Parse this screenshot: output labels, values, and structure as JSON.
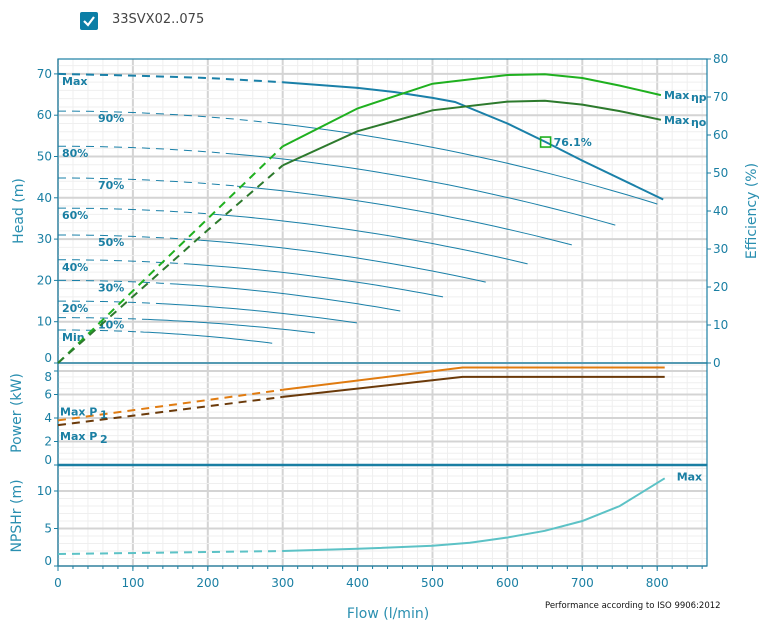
{
  "legend": {
    "checked": true,
    "label": "33SVX02..075",
    "color": "#0b7ea6"
  },
  "x_axis": {
    "label": "Flow (l/min)",
    "range": [
      0,
      867
    ],
    "ticks": [
      "0",
      "100",
      "200",
      "300",
      "400",
      "500",
      "600",
      "700",
      "800"
    ]
  },
  "note": "Performance according to ISO 9906:2012",
  "colors": {
    "axis": "#1a7fa3",
    "head": "#1a80a8",
    "eta_p": "#1fb01f",
    "eta_o": "#2d7a2d",
    "p1": "#e07b10",
    "p2": "#6b3a0a",
    "npsh": "#5cc2c6",
    "grid": "#d6d6d6"
  },
  "chart_data": [
    {
      "type": "line",
      "ylabel": "Head (m)",
      "ylim": [
        0,
        73.6
      ],
      "yticks": [
        "0",
        "10",
        "20",
        "30",
        "40",
        "50",
        "60",
        "70"
      ],
      "y2label": "Efficiency (%)",
      "y2lim": [
        0,
        80
      ],
      "y2ticks": [
        "0",
        "10",
        "20",
        "30",
        "40",
        "50",
        "60",
        "70",
        "80"
      ],
      "grid": true,
      "head_curves": [
        {
          "label": "Max",
          "points": [
            [
              0,
              70
            ],
            [
              100,
              69.6
            ],
            [
              200,
              69
            ],
            [
              300,
              68
            ],
            [
              400,
              66.6
            ],
            [
              450,
              65.6
            ],
            [
              500,
              64.2
            ],
            [
              530,
              63.2
            ],
            [
              600,
              58
            ],
            [
              651,
              53.5
            ],
            [
              700,
              49
            ],
            [
              808,
              39.6
            ]
          ],
          "solid_from": 300
        },
        {
          "label": "90%",
          "h0": 61,
          "end": [
            800,
            38.5
          ],
          "solid_from": 283
        },
        {
          "label": "80%",
          "h0": 52.5,
          "end": [
            744,
            33.4
          ],
          "solid_from": 234
        },
        {
          "label": "70%",
          "h0": 44.8,
          "end": [
            686,
            28.6
          ],
          "solid_from": 239
        },
        {
          "label": "60%",
          "h0": 37.5,
          "end": [
            627,
            24
          ],
          "solid_from": 216
        },
        {
          "label": "50%",
          "h0": 31,
          "end": [
            571,
            19.6
          ],
          "solid_from": 190
        },
        {
          "label": "40%",
          "h0": 25,
          "end": [
            514,
            16
          ],
          "solid_from": 170
        },
        {
          "label": "30%",
          "h0": 20,
          "end": [
            457,
            12.6
          ],
          "solid_from": 150
        },
        {
          "label": "20%",
          "h0": 15,
          "end": [
            399,
            9.7
          ],
          "solid_from": 140
        },
        {
          "label": "10%",
          "h0": 11,
          "end": [
            343,
            7.3
          ],
          "solid_from": 120
        },
        {
          "label": "Min",
          "h0": 8,
          "end": [
            286,
            4.8
          ],
          "solid_from": 110
        }
      ],
      "efficiency_curves": [
        {
          "name": "Max ηp",
          "label": "Max",
          "sub": "ηp",
          "points": [
            [
              0,
              0
            ],
            [
              100,
              19
            ],
            [
              200,
              38
            ],
            [
              300,
              57
            ],
            [
              400,
              67
            ],
            [
              500,
              73.5
            ],
            [
              600,
              75.8
            ],
            [
              650,
              76
            ],
            [
              700,
              75
            ],
            [
              750,
              73
            ],
            [
              805,
              70.5
            ]
          ],
          "solid_from": 300
        },
        {
          "name": "Max ηo",
          "label": "Max",
          "sub": "ηo",
          "points": [
            [
              0,
              0
            ],
            [
              100,
              17.5
            ],
            [
              200,
              35
            ],
            [
              300,
              52
            ],
            [
              400,
              61
            ],
            [
              500,
              66.5
            ],
            [
              600,
              68.8
            ],
            [
              650,
              69
            ],
            [
              700,
              68
            ],
            [
              750,
              66.3
            ],
            [
              805,
              64
            ]
          ],
          "solid_from": 300
        }
      ],
      "duty_point": {
        "flow": 651,
        "head": 53.5,
        "label": "76.1%"
      }
    },
    {
      "type": "line",
      "ylabel": "Power (kW)",
      "ylim": [
        0,
        8.7
      ],
      "yticks": [
        "0",
        "2",
        "4",
        "6",
        "8"
      ],
      "series": [
        {
          "name": "Max P1",
          "label": "Max P",
          "sub": "1",
          "points": [
            [
              0,
              3.8
            ],
            [
              300,
              6.4
            ],
            [
              540,
              8.3
            ],
            [
              810,
              8.3
            ]
          ],
          "solid_from": 300
        },
        {
          "name": "Max P2",
          "label": "Max P",
          "sub": "2",
          "points": [
            [
              0,
              3.4
            ],
            [
              300,
              5.8
            ],
            [
              540,
              7.5
            ],
            [
              810,
              7.5
            ]
          ],
          "solid_from": 300
        }
      ]
    },
    {
      "type": "line",
      "ylabel": "NPSHr (m)",
      "ylim": [
        0,
        13.5
      ],
      "yticks": [
        "0",
        "5",
        "10"
      ],
      "series": [
        {
          "name": "Max",
          "label": "Max",
          "points": [
            [
              0,
              1.6
            ],
            [
              300,
              2.0
            ],
            [
              400,
              2.3
            ],
            [
              500,
              2.7
            ],
            [
              550,
              3.1
            ],
            [
              600,
              3.8
            ],
            [
              650,
              4.7
            ],
            [
              700,
              6.0
            ],
            [
              750,
              8.0
            ],
            [
              810,
              11.7
            ]
          ],
          "solid_from": 300
        }
      ]
    }
  ]
}
